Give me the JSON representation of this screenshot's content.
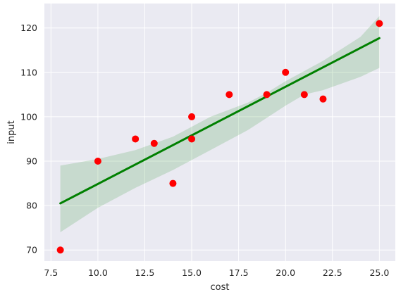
{
  "chart_data": {
    "type": "scatter",
    "title": "",
    "xlabel": "cost",
    "ylabel": "input",
    "xlim": [
      7.15,
      25.85
    ],
    "ylim": [
      67.5,
      125.5
    ],
    "xticks": [
      7.5,
      10.0,
      12.5,
      15.0,
      17.5,
      20.0,
      22.5,
      25.0
    ],
    "xtick_labels": [
      "7.5",
      "10.0",
      "12.5",
      "15.0",
      "17.5",
      "20.0",
      "22.5",
      "25.0"
    ],
    "yticks": [
      70,
      80,
      90,
      100,
      110,
      120
    ],
    "ytick_labels": [
      "70",
      "80",
      "90",
      "100",
      "110",
      "120"
    ],
    "grid": true,
    "background": "#eaeaf2",
    "grid_color": "#ffffff",
    "points": [
      {
        "x": 8,
        "y": 70
      },
      {
        "x": 10,
        "y": 90
      },
      {
        "x": 12,
        "y": 95
      },
      {
        "x": 13,
        "y": 94
      },
      {
        "x": 14,
        "y": 85
      },
      {
        "x": 15,
        "y": 95
      },
      {
        "x": 15,
        "y": 100
      },
      {
        "x": 17,
        "y": 105
      },
      {
        "x": 19,
        "y": 105
      },
      {
        "x": 20,
        "y": 110
      },
      {
        "x": 21,
        "y": 105
      },
      {
        "x": 22,
        "y": 104
      },
      {
        "x": 25,
        "y": 121
      }
    ],
    "point_color": "#ff0000",
    "regression": {
      "x": [
        8,
        25
      ],
      "y": [
        80.5,
        117.7
      ],
      "color": "#008000"
    },
    "confidence_band": {
      "color": "#008000",
      "upper": [
        [
          8,
          89.0
        ],
        [
          10,
          90.5
        ],
        [
          12,
          92.5
        ],
        [
          14,
          95.5
        ],
        [
          16,
          100.0
        ],
        [
          18,
          103.2
        ],
        [
          19,
          105.4
        ],
        [
          20,
          108.0
        ],
        [
          22,
          112.6
        ],
        [
          24,
          118.0
        ],
        [
          25,
          122.7
        ]
      ],
      "lower": [
        [
          8,
          74.0
        ],
        [
          10,
          79.5
        ],
        [
          12,
          84.0
        ],
        [
          14,
          88.0
        ],
        [
          16,
          92.5
        ],
        [
          18,
          97.0
        ],
        [
          20,
          102.5
        ],
        [
          21,
          105.0
        ],
        [
          22,
          106.0
        ],
        [
          24,
          109.0
        ],
        [
          25,
          111.0
        ]
      ]
    }
  }
}
